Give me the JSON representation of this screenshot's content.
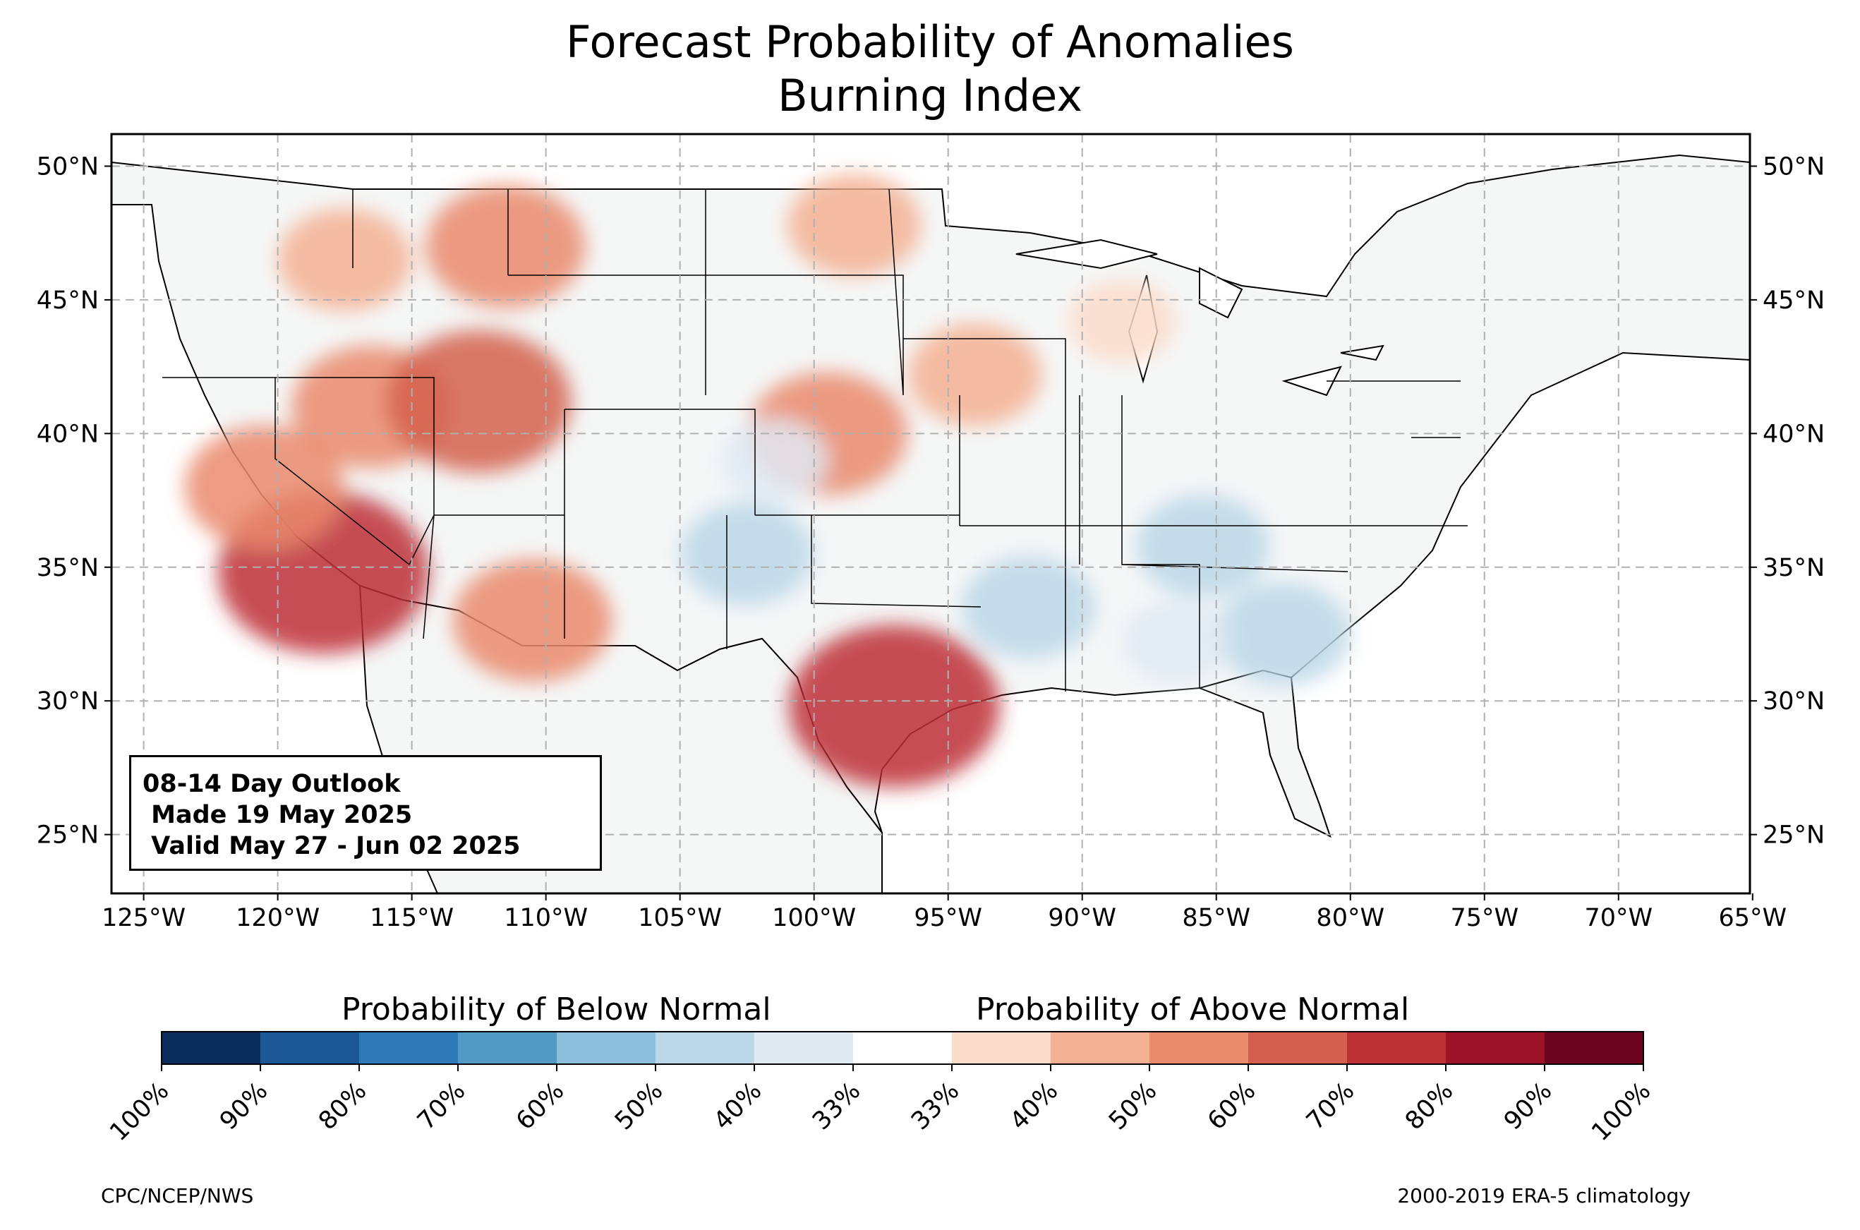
{
  "title": {
    "line1": "Forecast Probability of Anomalies",
    "line2": "Burning Index"
  },
  "outlook": {
    "line1": "08-14 Day Outlook",
    "line2": " Made 19 May 2025",
    "line3": " Valid May 27 - Jun 02 2025"
  },
  "map": {
    "lon_range": [
      -126.2,
      -65.1
    ],
    "lat_range": [
      22.8,
      51.2
    ],
    "lon_ticks": [
      -125,
      -120,
      -115,
      -110,
      -105,
      -100,
      -95,
      -90,
      -85,
      -80,
      -75,
      -70,
      -65
    ],
    "lon_labels": [
      "125°W",
      "120°W",
      "115°W",
      "110°W",
      "105°W",
      "100°W",
      "95°W",
      "90°W",
      "85°W",
      "80°W",
      "75°W",
      "70°W",
      "65°W"
    ],
    "lat_ticks": [
      25,
      30,
      35,
      40,
      45,
      50
    ],
    "lat_labels": [
      "25°N",
      "30°N",
      "35°N",
      "40°N",
      "45°N",
      "50°N"
    ],
    "grid": true,
    "land_color": "#f5f7f7",
    "anomaly_regions": [
      {
        "region": "Northern California / Nevada / Utah",
        "lon": -116.5,
        "lat": 41.0,
        "level": "above",
        "category": "50-60%"
      },
      {
        "region": "Southern California",
        "lon": -118.3,
        "lat": 34.8,
        "level": "above",
        "category": "70-80%"
      },
      {
        "region": "Central California",
        "lon": -120.5,
        "lat": 38.0,
        "level": "above",
        "category": "50-60%"
      },
      {
        "region": "Western Utah",
        "lon": -112.5,
        "lat": 41.2,
        "level": "above",
        "category": "60-70%"
      },
      {
        "region": "Arizona / New Mexico border",
        "lon": -110.5,
        "lat": 33.0,
        "level": "above",
        "category": "50-60%"
      },
      {
        "region": "Idaho / Montana",
        "lon": -111.5,
        "lat": 47.0,
        "level": "above",
        "category": "50-60%"
      },
      {
        "region": "Eastern Oregon / Idaho",
        "lon": -117.5,
        "lat": 46.5,
        "level": "above",
        "category": "40-50%"
      },
      {
        "region": "Kansas / Nebraska",
        "lon": -99.5,
        "lat": 40.0,
        "level": "above",
        "category": "50-60%"
      },
      {
        "region": "North Dakota",
        "lon": -98.5,
        "lat": 47.8,
        "level": "above",
        "category": "40-50%"
      },
      {
        "region": "Central Texas",
        "lon": -97.0,
        "lat": 29.8,
        "level": "above",
        "category": "70-80%"
      },
      {
        "region": "Iowa",
        "lon": -94.0,
        "lat": 42.2,
        "level": "above",
        "category": "40-50%"
      },
      {
        "region": "Wisconsin",
        "lon": -88.5,
        "lat": 44.2,
        "level": "above",
        "category": "33-40%"
      },
      {
        "region": "Georgia / South Carolina",
        "lon": -82.5,
        "lat": 32.5,
        "level": "below",
        "category": "40-50%"
      },
      {
        "region": "Alabama",
        "lon": -86.5,
        "lat": 32.2,
        "level": "below",
        "category": "33-40%"
      },
      {
        "region": "Tennessee / Kentucky",
        "lon": -85.5,
        "lat": 35.8,
        "level": "below",
        "category": "40-50%"
      },
      {
        "region": "Colorado",
        "lon": -101.5,
        "lat": 39.0,
        "level": "below",
        "category": "33-40%"
      },
      {
        "region": "Texas Panhandle",
        "lon": -102.5,
        "lat": 35.5,
        "level": "below",
        "category": "40-50%"
      },
      {
        "region": "Arkansas",
        "lon": -92.0,
        "lat": 33.5,
        "level": "below",
        "category": "40-50%"
      }
    ]
  },
  "colorbar": {
    "below_label": "Probability of Below Normal",
    "above_label": "Probability of Above Normal",
    "colors": [
      "#0a2d5e",
      "#1c5796",
      "#3079b7",
      "#5399c6",
      "#8cbfdb",
      "#bcd7e8",
      "#dfeaf2",
      "#ffffff",
      "#fbdcca",
      "#f4b093",
      "#ea8a6c",
      "#d3604e",
      "#bd3036",
      "#9c1226",
      "#6c0420"
    ],
    "tick_labels": [
      "100%",
      "90%",
      "80%",
      "70%",
      "60%",
      "50%",
      "40%",
      "33%",
      "33%",
      "40%",
      "50%",
      "60%",
      "70%",
      "80%",
      "90%",
      "100%"
    ]
  },
  "footer": {
    "left": "CPC/NCEP/NWS",
    "right": "2000-2019 ERA-5 climatology"
  }
}
